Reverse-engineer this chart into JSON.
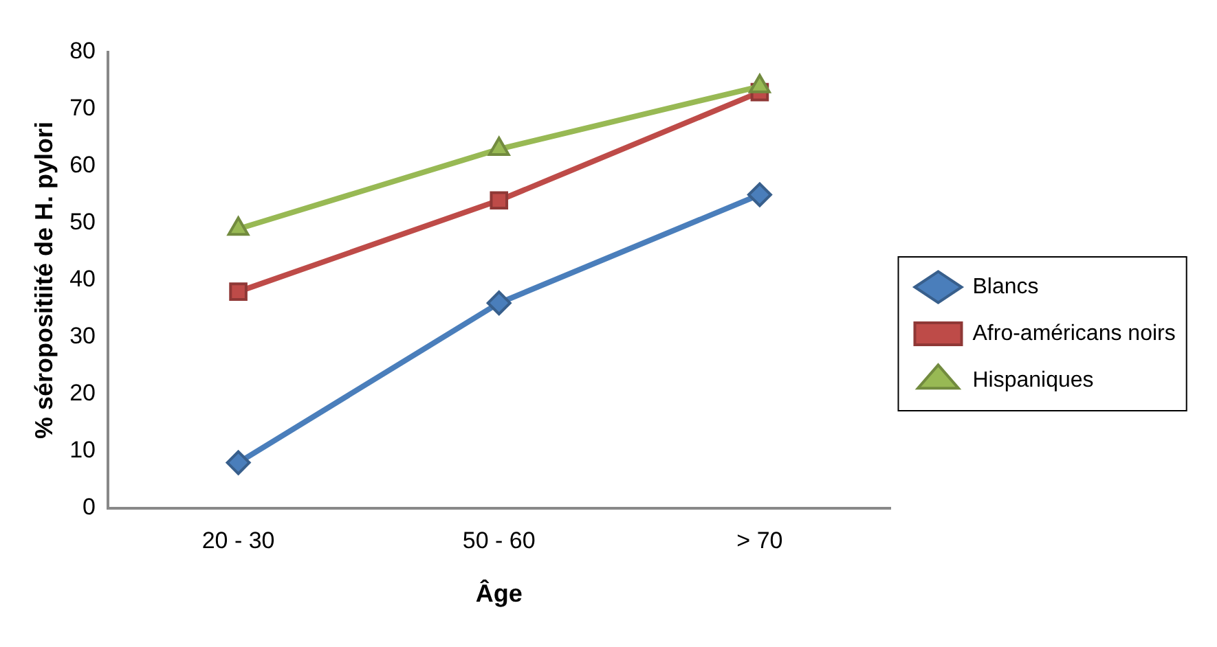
{
  "chart_data": {
    "type": "line",
    "xlabel": "Âge",
    "ylabel": "% séropositiité de H. pylori",
    "categories": [
      "20 - 30",
      "50 - 60",
      "> 70"
    ],
    "series": [
      {
        "name": "Blancs",
        "color": "#4a7ebb",
        "marker": "diamond",
        "values": [
          8,
          36,
          55
        ]
      },
      {
        "name": "Afro-américans noirs",
        "color": "#be4b48",
        "marker": "square",
        "values": [
          38,
          54,
          73
        ]
      },
      {
        "name": "Hispaniques",
        "color": "#98b954",
        "marker": "triangle",
        "values": [
          49,
          63,
          74
        ]
      }
    ],
    "ylim": [
      0,
      80
    ],
    "yticks": [
      0,
      10,
      20,
      30,
      40,
      50,
      60,
      70,
      80
    ],
    "grid": false,
    "legend": "right"
  }
}
